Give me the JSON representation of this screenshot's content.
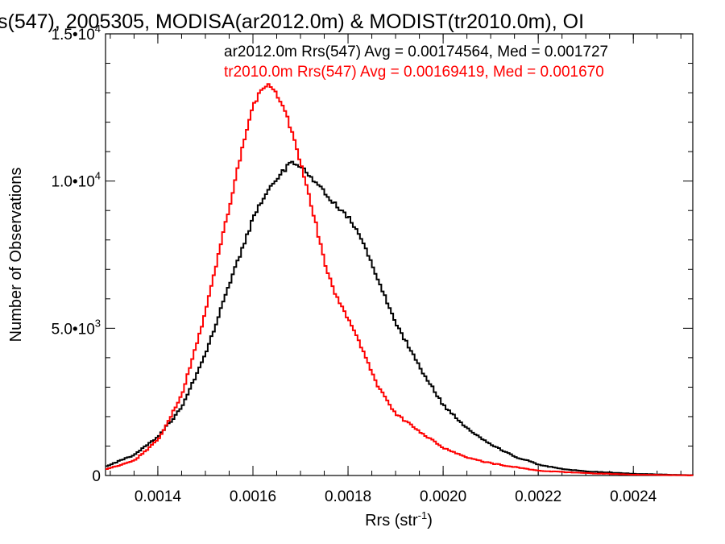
{
  "chart_data": {
    "type": "histogram-step",
    "title": "s(547), 2005305, MODISA(ar2012.0m) & MODIST(tr2010.0m), OI",
    "xlabel": "Rrs (str",
    "xlabel_sup": "-1",
    "xlabel_close": ")",
    "ylabel": "Number of Observations",
    "xlim": [
      0.00129,
      0.002525
    ],
    "ylim": [
      0,
      15000
    ],
    "x_ticks": [
      {
        "value": 0.0014,
        "label": "0.0014"
      },
      {
        "value": 0.0016,
        "label": "0.0016"
      },
      {
        "value": 0.0018,
        "label": "0.0018"
      },
      {
        "value": 0.002,
        "label": "0.0020"
      },
      {
        "value": 0.0022,
        "label": "0.0022"
      },
      {
        "value": 0.0024,
        "label": "0.0024"
      }
    ],
    "y_ticks": [
      {
        "value": 0,
        "mant": "0",
        "exp": ""
      },
      {
        "value": 5000,
        "mant": "5.0•10",
        "exp": "3"
      },
      {
        "value": 10000,
        "mant": "1.0•10",
        "exp": "4"
      },
      {
        "value": 15000,
        "mant": "1.5•10",
        "exp": "4"
      }
    ],
    "grid": false,
    "legend_placement": "top-right",
    "series": [
      {
        "name": "ar2012.0m Rrs(547) Avg = 0.00174564, Med = 0.001727",
        "color": "#000000",
        "x": [
          0.00129,
          0.00135,
          0.0014,
          0.00145,
          0.0015,
          0.00155,
          0.0016,
          0.00163,
          0.00166,
          0.00168,
          0.0017,
          0.00172,
          0.00175,
          0.00178,
          0.0018,
          0.00183,
          0.00186,
          0.0019,
          0.00195,
          0.002,
          0.00205,
          0.0021,
          0.00215,
          0.0022,
          0.00225,
          0.0023,
          0.0024,
          0.00252
        ],
        "values": [
          300,
          700,
          1300,
          2300,
          4100,
          6500,
          8700,
          9700,
          10300,
          10600,
          10450,
          10200,
          9600,
          9100,
          8800,
          8000,
          6800,
          5200,
          3700,
          2400,
          1600,
          1050,
          650,
          380,
          220,
          140,
          60,
          10
        ]
      },
      {
        "name": "tr2010.0m Rrs(547) Avg = 0.00169419, Med = 0.001670",
        "color": "#ff0000",
        "x": [
          0.00129,
          0.00135,
          0.0014,
          0.00145,
          0.0015,
          0.00153,
          0.00156,
          0.00158,
          0.0016,
          0.00162,
          0.00163,
          0.00165,
          0.00167,
          0.00169,
          0.00171,
          0.00173,
          0.00175,
          0.00177,
          0.0018,
          0.00183,
          0.00186,
          0.0019,
          0.00195,
          0.002,
          0.00205,
          0.0021,
          0.0022,
          0.0023,
          0.0024,
          0.00252
        ],
        "values": [
          200,
          500,
          1200,
          2700,
          5500,
          7700,
          9800,
          11300,
          12500,
          13200,
          13300,
          13000,
          12300,
          11200,
          10000,
          8700,
          7300,
          6300,
          5300,
          4300,
          3100,
          2100,
          1500,
          950,
          600,
          420,
          160,
          80,
          30,
          5
        ]
      }
    ]
  }
}
